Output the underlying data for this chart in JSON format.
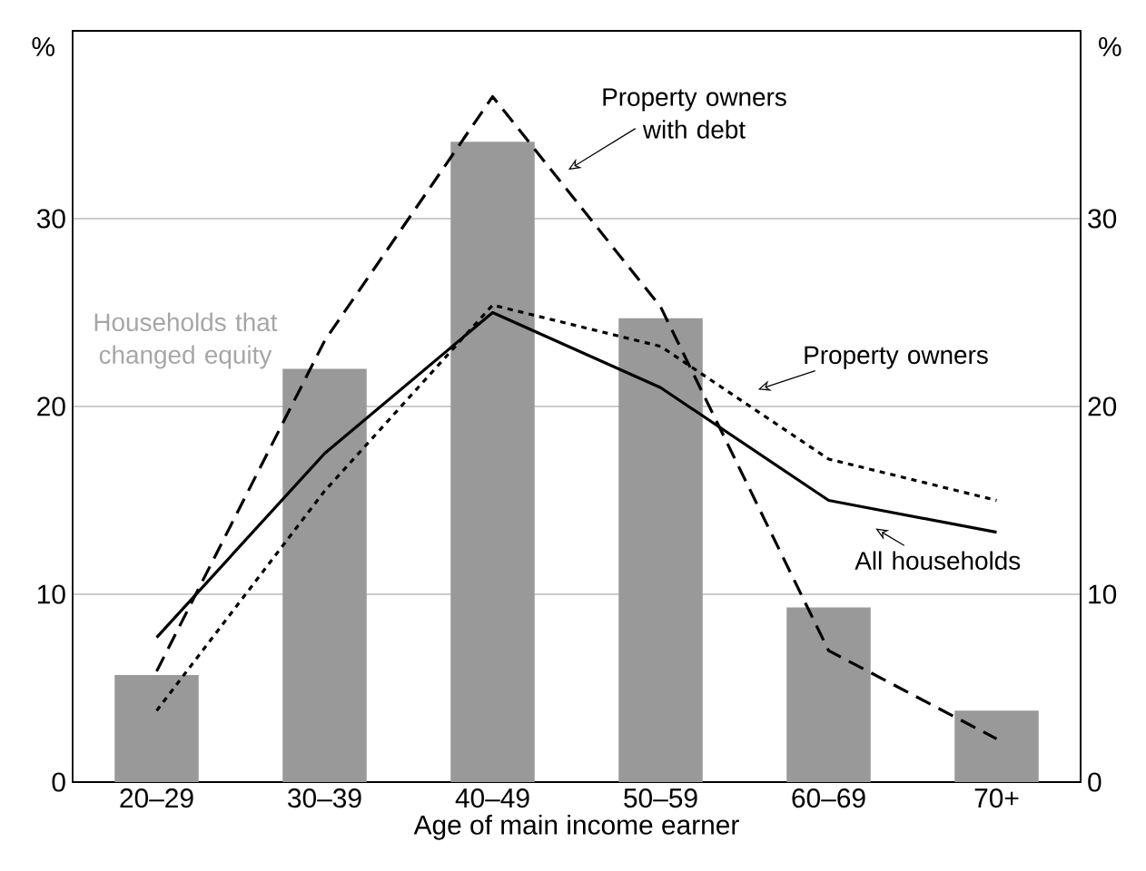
{
  "chart_data": {
    "type": "bar",
    "xlabel": "Age of main income earner",
    "ylabel": "%",
    "y2label": "%",
    "categories": [
      "20–29",
      "30–39",
      "40–49",
      "50–59",
      "60–69",
      "70+"
    ],
    "series": [
      {
        "name": "Households that changed equity",
        "color": "#999999",
        "values": [
          5.7,
          22.0,
          34.1,
          24.7,
          9.3,
          3.8
        ]
      },
      {
        "name": "Property owners with debt",
        "type": "line",
        "line_style": "dashed",
        "color": "#000000",
        "values": [
          5.9,
          23.5,
          36.5,
          25.3,
          7.0,
          2.3
        ]
      },
      {
        "name": "Property owners",
        "type": "line",
        "line_style": "dotted",
        "color": "#000000",
        "values": [
          3.8,
          15.5,
          25.4,
          23.2,
          17.2,
          15.0
        ]
      },
      {
        "name": "All households",
        "type": "line",
        "line_style": "solid",
        "color": "#000000",
        "values": [
          7.7,
          17.5,
          25.0,
          21.0,
          15.0,
          13.3
        ]
      }
    ],
    "ylim": [
      0,
      40
    ],
    "yticks": [
      0,
      10,
      20,
      30
    ],
    "y2lim": [
      0,
      40
    ],
    "y2ticks": [
      0,
      10,
      20,
      30
    ],
    "grid": "y"
  }
}
